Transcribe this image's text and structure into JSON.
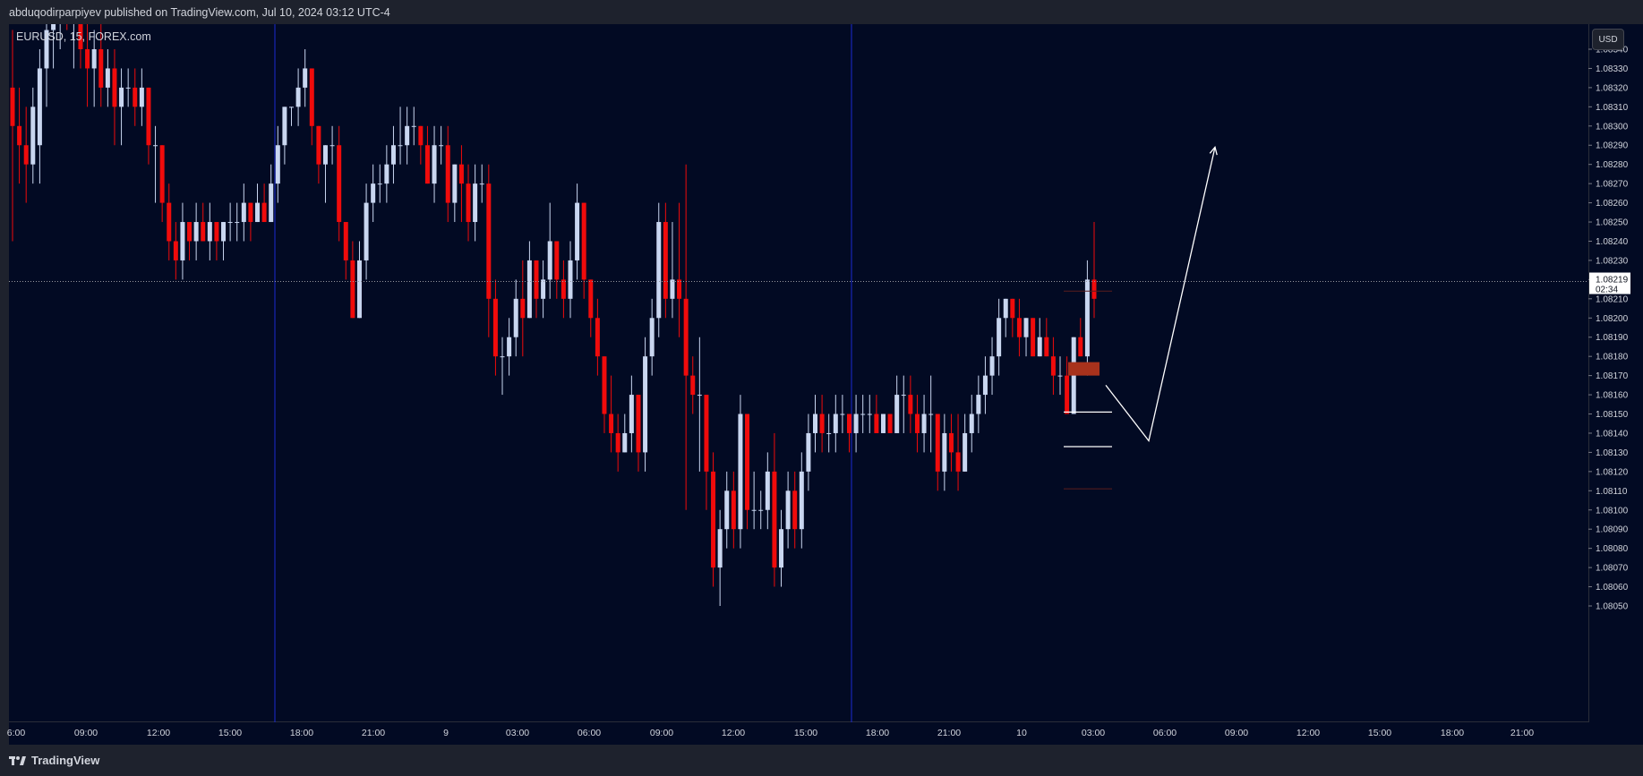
{
  "header": {
    "published_line": "abduqodirparpiyev published on TradingView.com, Jul 10, 2024 03:12 UTC-4"
  },
  "chart_title": "EURUSD, 15, FOREX.com",
  "currency_button": "USD",
  "brand": {
    "name": "TradingView",
    "icon": "tradingview-logo-icon"
  },
  "colors": {
    "background": "#020a23",
    "frame": "#1e222d",
    "up_candle": "#c9d6f0",
    "down_candle": "#f00b0b",
    "session_line": "#1a2ad0",
    "annotation": "#ffffff",
    "zone": "#a8321c",
    "price_tag_bg": "#ffffff",
    "price_tag_text": "#131722"
  },
  "chart_data": {
    "type": "candlestick",
    "symbol": "EURUSD",
    "interval": "15",
    "ylim": [
      1.08045,
      1.0835
    ],
    "y_ticks": [
      "1.08340",
      "1.08330",
      "1.08320",
      "1.08310",
      "1.08300",
      "1.08290",
      "1.08280",
      "1.08270",
      "1.08260",
      "1.08250",
      "1.08240",
      "1.08230",
      "1.08220",
      "1.08210",
      "1.08200",
      "1.08190",
      "1.08180",
      "1.08170",
      "1.08160",
      "1.08150",
      "1.08140",
      "1.08130",
      "1.08120",
      "1.08110",
      "1.08100",
      "1.08090",
      "1.08080",
      "1.08070",
      "1.08060",
      "1.08050"
    ],
    "x_ticks": [
      "6:00",
      "09:00",
      "12:00",
      "15:00",
      "18:00",
      "21:00",
      "9",
      "03:00",
      "06:00",
      "09:00",
      "12:00",
      "15:00",
      "18:00",
      "21:00",
      "10",
      "03:00",
      "06:00",
      "09:00",
      "12:00",
      "15:00",
      "18:00",
      "21:00"
    ],
    "current_price": {
      "value": "1.08219",
      "countdown": "02:34"
    },
    "levels": [
      1.08214,
      1.08151,
      1.08133,
      1.08111
    ],
    "zone": {
      "top": 1.08177,
      "bottom": 1.0817
    },
    "projection": [
      [
        1.08165
      ],
      [
        1.08136
      ],
      [
        1.08289
      ]
    ],
    "candles": [
      {
        "o": 1.0832,
        "h": 1.0835,
        "l": 1.0824,
        "c": 1.083
      },
      {
        "o": 1.083,
        "h": 1.0832,
        "l": 1.0827,
        "c": 1.0829
      },
      {
        "o": 1.0829,
        "h": 1.0831,
        "l": 1.0826,
        "c": 1.0828
      },
      {
        "o": 1.0828,
        "h": 1.0832,
        "l": 1.0827,
        "c": 1.0831
      },
      {
        "o": 1.0829,
        "h": 1.0834,
        "l": 1.0827,
        "c": 1.0833
      },
      {
        "o": 1.0833,
        "h": 1.0837,
        "l": 1.0831,
        "c": 1.0835
      },
      {
        "o": 1.0835,
        "h": 1.0838,
        "l": 1.0833,
        "c": 1.0836
      },
      {
        "o": 1.0836,
        "h": 1.0839,
        "l": 1.0834,
        "c": 1.0837
      },
      {
        "o": 1.0837,
        "h": 1.084,
        "l": 1.0835,
        "c": 1.0836
      },
      {
        "o": 1.0836,
        "h": 1.0838,
        "l": 1.0833,
        "c": 1.0837
      },
      {
        "o": 1.0837,
        "h": 1.0839,
        "l": 1.0833,
        "c": 1.0834
      },
      {
        "o": 1.0834,
        "h": 1.0836,
        "l": 1.0831,
        "c": 1.0833
      },
      {
        "o": 1.0833,
        "h": 1.0835,
        "l": 1.0831,
        "c": 1.0834
      },
      {
        "o": 1.0834,
        "h": 1.0836,
        "l": 1.0831,
        "c": 1.0832
      },
      {
        "o": 1.0832,
        "h": 1.0834,
        "l": 1.0831,
        "c": 1.0833
      },
      {
        "o": 1.0833,
        "h": 1.0834,
        "l": 1.0829,
        "c": 1.0831
      },
      {
        "o": 1.0831,
        "h": 1.0833,
        "l": 1.0829,
        "c": 1.0832
      },
      {
        "o": 1.0832,
        "h": 1.0833,
        "l": 1.0831,
        "c": 1.0832
      },
      {
        "o": 1.0832,
        "h": 1.0833,
        "l": 1.083,
        "c": 1.0831
      },
      {
        "o": 1.0831,
        "h": 1.0833,
        "l": 1.083,
        "c": 1.0832
      },
      {
        "o": 1.0832,
        "h": 1.0832,
        "l": 1.0828,
        "c": 1.0829
      },
      {
        "o": 1.0829,
        "h": 1.083,
        "l": 1.0826,
        "c": 1.0829
      },
      {
        "o": 1.0829,
        "h": 1.0829,
        "l": 1.0825,
        "c": 1.0826
      },
      {
        "o": 1.0826,
        "h": 1.0827,
        "l": 1.0823,
        "c": 1.0824
      },
      {
        "o": 1.0824,
        "h": 1.0825,
        "l": 1.0822,
        "c": 1.0823
      },
      {
        "o": 1.0823,
        "h": 1.0826,
        "l": 1.0822,
        "c": 1.0825
      },
      {
        "o": 1.0825,
        "h": 1.0825,
        "l": 1.0823,
        "c": 1.0824
      },
      {
        "o": 1.0824,
        "h": 1.0826,
        "l": 1.0823,
        "c": 1.0825
      },
      {
        "o": 1.0825,
        "h": 1.0826,
        "l": 1.0824,
        "c": 1.0824
      },
      {
        "o": 1.0824,
        "h": 1.0826,
        "l": 1.0823,
        "c": 1.0825
      },
      {
        "o": 1.0825,
        "h": 1.0825,
        "l": 1.0823,
        "c": 1.0824
      },
      {
        "o": 1.0824,
        "h": 1.0825,
        "l": 1.0823,
        "c": 1.0825
      },
      {
        "o": 1.0825,
        "h": 1.0826,
        "l": 1.0824,
        "c": 1.0825
      },
      {
        "o": 1.0825,
        "h": 1.0826,
        "l": 1.0824,
        "c": 1.0825
      },
      {
        "o": 1.0825,
        "h": 1.0827,
        "l": 1.0824,
        "c": 1.0826
      },
      {
        "o": 1.0826,
        "h": 1.0826,
        "l": 1.0824,
        "c": 1.0825
      },
      {
        "o": 1.0825,
        "h": 1.0827,
        "l": 1.0825,
        "c": 1.0826
      },
      {
        "o": 1.0826,
        "h": 1.0827,
        "l": 1.0825,
        "c": 1.0825
      },
      {
        "o": 1.0825,
        "h": 1.0828,
        "l": 1.0825,
        "c": 1.0827
      },
      {
        "o": 1.0827,
        "h": 1.083,
        "l": 1.0826,
        "c": 1.0829
      },
      {
        "o": 1.0829,
        "h": 1.0831,
        "l": 1.0828,
        "c": 1.0831
      },
      {
        "o": 1.0831,
        "h": 1.0831,
        "l": 1.083,
        "c": 1.0831
      },
      {
        "o": 1.0831,
        "h": 1.0833,
        "l": 1.083,
        "c": 1.0832
      },
      {
        "o": 1.0832,
        "h": 1.0834,
        "l": 1.0831,
        "c": 1.0833
      },
      {
        "o": 1.0833,
        "h": 1.0833,
        "l": 1.0829,
        "c": 1.083
      },
      {
        "o": 1.083,
        "h": 1.083,
        "l": 1.0827,
        "c": 1.0828
      },
      {
        "o": 1.0828,
        "h": 1.0829,
        "l": 1.0826,
        "c": 1.0829
      },
      {
        "o": 1.0829,
        "h": 1.083,
        "l": 1.0828,
        "c": 1.0829
      },
      {
        "o": 1.0829,
        "h": 1.083,
        "l": 1.0824,
        "c": 1.0825
      },
      {
        "o": 1.0825,
        "h": 1.0825,
        "l": 1.0822,
        "c": 1.0823
      },
      {
        "o": 1.0823,
        "h": 1.0824,
        "l": 1.082,
        "c": 1.082
      },
      {
        "o": 1.082,
        "h": 1.0824,
        "l": 1.082,
        "c": 1.0823
      },
      {
        "o": 1.0823,
        "h": 1.0827,
        "l": 1.0822,
        "c": 1.0826
      },
      {
        "o": 1.0826,
        "h": 1.0828,
        "l": 1.0825,
        "c": 1.0827
      },
      {
        "o": 1.0827,
        "h": 1.0828,
        "l": 1.0826,
        "c": 1.0827
      },
      {
        "o": 1.0827,
        "h": 1.0829,
        "l": 1.0826,
        "c": 1.0828
      },
      {
        "o": 1.0828,
        "h": 1.083,
        "l": 1.0827,
        "c": 1.0829
      },
      {
        "o": 1.0829,
        "h": 1.0831,
        "l": 1.0828,
        "c": 1.0829
      },
      {
        "o": 1.0829,
        "h": 1.0831,
        "l": 1.0828,
        "c": 1.083
      },
      {
        "o": 1.083,
        "h": 1.0831,
        "l": 1.0829,
        "c": 1.083
      },
      {
        "o": 1.083,
        "h": 1.083,
        "l": 1.0828,
        "c": 1.0829
      },
      {
        "o": 1.0829,
        "h": 1.083,
        "l": 1.0827,
        "c": 1.0827
      },
      {
        "o": 1.0827,
        "h": 1.083,
        "l": 1.0826,
        "c": 1.0829
      },
      {
        "o": 1.0829,
        "h": 1.083,
        "l": 1.0828,
        "c": 1.0829
      },
      {
        "o": 1.0829,
        "h": 1.083,
        "l": 1.0825,
        "c": 1.0826
      },
      {
        "o": 1.0826,
        "h": 1.0828,
        "l": 1.0825,
        "c": 1.0828
      },
      {
        "o": 1.0828,
        "h": 1.0829,
        "l": 1.0825,
        "c": 1.0827
      },
      {
        "o": 1.0827,
        "h": 1.0828,
        "l": 1.0824,
        "c": 1.0825
      },
      {
        "o": 1.0825,
        "h": 1.0828,
        "l": 1.0824,
        "c": 1.0827
      },
      {
        "o": 1.0827,
        "h": 1.0828,
        "l": 1.0826,
        "c": 1.0827
      },
      {
        "o": 1.0827,
        "h": 1.0828,
        "l": 1.0819,
        "c": 1.0821
      },
      {
        "o": 1.0821,
        "h": 1.0822,
        "l": 1.0817,
        "c": 1.0818
      },
      {
        "o": 1.0818,
        "h": 1.0819,
        "l": 1.0816,
        "c": 1.0818
      },
      {
        "o": 1.0818,
        "h": 1.082,
        "l": 1.0817,
        "c": 1.0819
      },
      {
        "o": 1.0819,
        "h": 1.0822,
        "l": 1.0818,
        "c": 1.0821
      },
      {
        "o": 1.0821,
        "h": 1.0823,
        "l": 1.0818,
        "c": 1.082
      },
      {
        "o": 1.082,
        "h": 1.0824,
        "l": 1.082,
        "c": 1.0823
      },
      {
        "o": 1.0823,
        "h": 1.0823,
        "l": 1.082,
        "c": 1.0821
      },
      {
        "o": 1.0821,
        "h": 1.0823,
        "l": 1.082,
        "c": 1.0822
      },
      {
        "o": 1.0822,
        "h": 1.0826,
        "l": 1.0821,
        "c": 1.0824
      },
      {
        "o": 1.0824,
        "h": 1.0824,
        "l": 1.0821,
        "c": 1.0822
      },
      {
        "o": 1.0822,
        "h": 1.0823,
        "l": 1.082,
        "c": 1.0821
      },
      {
        "o": 1.0821,
        "h": 1.0824,
        "l": 1.082,
        "c": 1.0823
      },
      {
        "o": 1.0823,
        "h": 1.0827,
        "l": 1.0822,
        "c": 1.0826
      },
      {
        "o": 1.0826,
        "h": 1.0826,
        "l": 1.0821,
        "c": 1.0822
      },
      {
        "o": 1.0822,
        "h": 1.0822,
        "l": 1.0819,
        "c": 1.082
      },
      {
        "o": 1.082,
        "h": 1.0821,
        "l": 1.0817,
        "c": 1.0818
      },
      {
        "o": 1.0818,
        "h": 1.0818,
        "l": 1.0814,
        "c": 1.0815
      },
      {
        "o": 1.0815,
        "h": 1.0817,
        "l": 1.0813,
        "c": 1.0814
      },
      {
        "o": 1.0814,
        "h": 1.0815,
        "l": 1.0812,
        "c": 1.0813
      },
      {
        "o": 1.0813,
        "h": 1.0815,
        "l": 1.0813,
        "c": 1.0814
      },
      {
        "o": 1.0814,
        "h": 1.0817,
        "l": 1.0813,
        "c": 1.0816
      },
      {
        "o": 1.0816,
        "h": 1.0816,
        "l": 1.0812,
        "c": 1.0813
      },
      {
        "o": 1.0813,
        "h": 1.0819,
        "l": 1.0812,
        "c": 1.0818
      },
      {
        "o": 1.0818,
        "h": 1.0821,
        "l": 1.0817,
        "c": 1.082
      },
      {
        "o": 1.082,
        "h": 1.0826,
        "l": 1.0819,
        "c": 1.0825
      },
      {
        "o": 1.0825,
        "h": 1.0826,
        "l": 1.082,
        "c": 1.0821
      },
      {
        "o": 1.0821,
        "h": 1.0825,
        "l": 1.082,
        "c": 1.0822
      },
      {
        "o": 1.0822,
        "h": 1.0826,
        "l": 1.0819,
        "c": 1.0821
      },
      {
        "o": 1.0821,
        "h": 1.0828,
        "l": 1.081,
        "c": 1.0817
      },
      {
        "o": 1.0817,
        "h": 1.0818,
        "l": 1.0815,
        "c": 1.0816
      },
      {
        "o": 1.0816,
        "h": 1.0819,
        "l": 1.0812,
        "c": 1.0816
      },
      {
        "o": 1.0816,
        "h": 1.0816,
        "l": 1.081,
        "c": 1.0812
      },
      {
        "o": 1.0812,
        "h": 1.0813,
        "l": 1.0806,
        "c": 1.0807
      },
      {
        "o": 1.0807,
        "h": 1.081,
        "l": 1.0805,
        "c": 1.0809
      },
      {
        "o": 1.0809,
        "h": 1.0812,
        "l": 1.0808,
        "c": 1.0811
      },
      {
        "o": 1.0811,
        "h": 1.0812,
        "l": 1.0808,
        "c": 1.0809
      },
      {
        "o": 1.0809,
        "h": 1.0816,
        "l": 1.0808,
        "c": 1.0815
      },
      {
        "o": 1.0815,
        "h": 1.0815,
        "l": 1.0809,
        "c": 1.081
      },
      {
        "o": 1.081,
        "h": 1.0812,
        "l": 1.0809,
        "c": 1.081
      },
      {
        "o": 1.081,
        "h": 1.0811,
        "l": 1.0809,
        "c": 1.081
      },
      {
        "o": 1.081,
        "h": 1.0813,
        "l": 1.0809,
        "c": 1.0812
      },
      {
        "o": 1.0812,
        "h": 1.0814,
        "l": 1.0806,
        "c": 1.0807
      },
      {
        "o": 1.0807,
        "h": 1.081,
        "l": 1.0806,
        "c": 1.0809
      },
      {
        "o": 1.0809,
        "h": 1.0812,
        "l": 1.0808,
        "c": 1.0811
      },
      {
        "o": 1.0811,
        "h": 1.0812,
        "l": 1.0808,
        "c": 1.0809
      },
      {
        "o": 1.0809,
        "h": 1.0813,
        "l": 1.0808,
        "c": 1.0812
      },
      {
        "o": 1.0812,
        "h": 1.0815,
        "l": 1.0811,
        "c": 1.0814
      },
      {
        "o": 1.0814,
        "h": 1.0816,
        "l": 1.0813,
        "c": 1.0815
      },
      {
        "o": 1.0815,
        "h": 1.0816,
        "l": 1.0813,
        "c": 1.0814
      },
      {
        "o": 1.0814,
        "h": 1.0815,
        "l": 1.0813,
        "c": 1.0814
      },
      {
        "o": 1.0814,
        "h": 1.0816,
        "l": 1.0813,
        "c": 1.0815
      },
      {
        "o": 1.0815,
        "h": 1.0816,
        "l": 1.0814,
        "c": 1.0815
      },
      {
        "o": 1.0815,
        "h": 1.0815,
        "l": 1.0813,
        "c": 1.0814
      },
      {
        "o": 1.0814,
        "h": 1.0816,
        "l": 1.0813,
        "c": 1.0815
      },
      {
        "o": 1.0815,
        "h": 1.0816,
        "l": 1.0814,
        "c": 1.0815
      },
      {
        "o": 1.0815,
        "h": 1.0816,
        "l": 1.0814,
        "c": 1.0815
      },
      {
        "o": 1.0815,
        "h": 1.0816,
        "l": 1.0814,
        "c": 1.0814
      },
      {
        "o": 1.0814,
        "h": 1.0815,
        "l": 1.0814,
        "c": 1.0815
      },
      {
        "o": 1.0815,
        "h": 1.0815,
        "l": 1.0814,
        "c": 1.0814
      },
      {
        "o": 1.0814,
        "h": 1.0817,
        "l": 1.0814,
        "c": 1.0816
      },
      {
        "o": 1.0816,
        "h": 1.0817,
        "l": 1.0814,
        "c": 1.0816
      },
      {
        "o": 1.0816,
        "h": 1.0817,
        "l": 1.0814,
        "c": 1.0815
      },
      {
        "o": 1.0815,
        "h": 1.0816,
        "l": 1.0813,
        "c": 1.0814
      },
      {
        "o": 1.0814,
        "h": 1.0816,
        "l": 1.0813,
        "c": 1.0815
      },
      {
        "o": 1.0815,
        "h": 1.0817,
        "l": 1.0813,
        "c": 1.0815
      },
      {
        "o": 1.0815,
        "h": 1.0815,
        "l": 1.0811,
        "c": 1.0812
      },
      {
        "o": 1.0812,
        "h": 1.0815,
        "l": 1.0811,
        "c": 1.0814
      },
      {
        "o": 1.0814,
        "h": 1.0815,
        "l": 1.0812,
        "c": 1.0813
      },
      {
        "o": 1.0813,
        "h": 1.0815,
        "l": 1.0811,
        "c": 1.0812
      },
      {
        "o": 1.0812,
        "h": 1.0815,
        "l": 1.0812,
        "c": 1.0814
      },
      {
        "o": 1.0814,
        "h": 1.0816,
        "l": 1.0813,
        "c": 1.0815
      },
      {
        "o": 1.0815,
        "h": 1.0817,
        "l": 1.0814,
        "c": 1.0816
      },
      {
        "o": 1.0816,
        "h": 1.0818,
        "l": 1.0815,
        "c": 1.0817
      },
      {
        "o": 1.0817,
        "h": 1.0819,
        "l": 1.0816,
        "c": 1.0818
      },
      {
        "o": 1.0818,
        "h": 1.0821,
        "l": 1.0817,
        "c": 1.082
      },
      {
        "o": 1.082,
        "h": 1.0821,
        "l": 1.0819,
        "c": 1.0821
      },
      {
        "o": 1.0821,
        "h": 1.0821,
        "l": 1.0819,
        "c": 1.082
      },
      {
        "o": 1.082,
        "h": 1.0821,
        "l": 1.0818,
        "c": 1.0819
      },
      {
        "o": 1.0819,
        "h": 1.082,
        "l": 1.0818,
        "c": 1.082
      },
      {
        "o": 1.082,
        "h": 1.082,
        "l": 1.0818,
        "c": 1.0818
      },
      {
        "o": 1.0818,
        "h": 1.082,
        "l": 1.0818,
        "c": 1.0819
      },
      {
        "o": 1.0819,
        "h": 1.082,
        "l": 1.0818,
        "c": 1.0818
      },
      {
        "o": 1.0818,
        "h": 1.0819,
        "l": 1.0816,
        "c": 1.0817
      },
      {
        "o": 1.0817,
        "h": 1.0818,
        "l": 1.0816,
        "c": 1.0817
      },
      {
        "o": 1.0817,
        "h": 1.0818,
        "l": 1.0815,
        "c": 1.0815
      },
      {
        "o": 1.0815,
        "h": 1.0819,
        "l": 1.0815,
        "c": 1.0819
      },
      {
        "o": 1.0819,
        "h": 1.082,
        "l": 1.0818,
        "c": 1.0818
      },
      {
        "o": 1.0818,
        "h": 1.0823,
        "l": 1.0817,
        "c": 1.0822
      },
      {
        "o": 1.0822,
        "h": 1.0825,
        "l": 1.082,
        "c": 1.0821
      }
    ]
  }
}
